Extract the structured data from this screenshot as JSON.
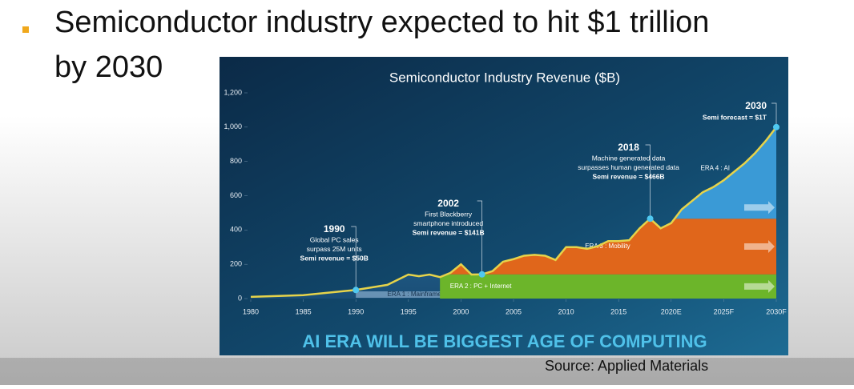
{
  "slide": {
    "title_lines": [
      "Semiconductor industry expected to hit $1 trillion",
      "by 2030"
    ],
    "source": "Source: Applied Materials"
  },
  "chart_data": {
    "type": "area",
    "title": "Semiconductor Industry Revenue ($B)",
    "x": [
      1980,
      1985,
      1990,
      1993,
      1995,
      1996,
      1997,
      1998,
      1999,
      2000,
      2001,
      2002,
      2003,
      2004,
      2005,
      2006,
      2007,
      2008,
      2009,
      2010,
      2011,
      2012,
      2013,
      2014,
      2015,
      2016,
      2017,
      2018,
      2019,
      2020,
      2021,
      2022,
      2023,
      2024,
      2025,
      2026,
      2027,
      2028,
      2029,
      2030
    ],
    "values": [
      10,
      20,
      50,
      80,
      140,
      130,
      140,
      125,
      150,
      200,
      140,
      141,
      160,
      215,
      230,
      250,
      255,
      250,
      225,
      300,
      300,
      290,
      305,
      335,
      335,
      340,
      410,
      466,
      410,
      440,
      520,
      570,
      620,
      650,
      690,
      740,
      790,
      850,
      920,
      1000
    ],
    "color": "#e6d34a",
    "xlim": [
      1980,
      2030
    ],
    "xticks": [
      1980,
      1985,
      1990,
      1995,
      2000,
      2005,
      2010,
      2015,
      {
        "value": 2020,
        "label": "2020E"
      },
      {
        "value": 2025,
        "label": "2025F"
      },
      {
        "value": 2030,
        "label": "2030F"
      }
    ],
    "ylim": [
      0,
      1200
    ],
    "yticks": [
      0,
      200,
      400,
      600,
      800,
      {
        "value": 1000,
        "label": "1,000"
      },
      {
        "value": 1200,
        "label": "1,200"
      }
    ],
    "eras": [
      {
        "label": "ERA 1 : Mainframe",
        "xlim": [
          1990,
          2000
        ],
        "ylim": [
          0,
          40
        ],
        "color": "#a9c8e6"
      },
      {
        "label": "ERA 2 : PC + Internet",
        "xlim": [
          1998,
          2030
        ],
        "ylim": [
          0,
          141
        ],
        "color": "#6cb52a"
      },
      {
        "label": "ERA 3 : Mobility",
        "xlim": [
          1995,
          2030
        ],
        "ylim": [
          141,
          466
        ],
        "color": "#e0661b"
      },
      {
        "label": "ERA 4 : AI",
        "xlim": [
          2018,
          2030
        ],
        "ylim": [
          466,
          1000
        ],
        "color": "#3a9ad6"
      }
    ],
    "annotations": [
      {
        "x": 1990,
        "y": 50,
        "label": "1990",
        "text": [
          "Global PC sales",
          "surpass 25M units"
        ],
        "note": "Semi revenue = $50B"
      },
      {
        "x": 2002,
        "y": 141,
        "label": "2002",
        "text": [
          "First Blackberry",
          "smartphone introduced"
        ],
        "note": "Semi revenue = $141B"
      },
      {
        "x": 2018,
        "y": 466,
        "label": "2018",
        "text": [
          "Machine generated data",
          "surpasses human generated data"
        ],
        "note": "Semi revenue = $466B"
      },
      {
        "x": 2030,
        "y": 1000,
        "label": "2030",
        "text": [],
        "note": "Semi forecast = $1T"
      }
    ],
    "banner": "AI ERA WILL BE BIGGEST AGE OF COMPUTING"
  }
}
